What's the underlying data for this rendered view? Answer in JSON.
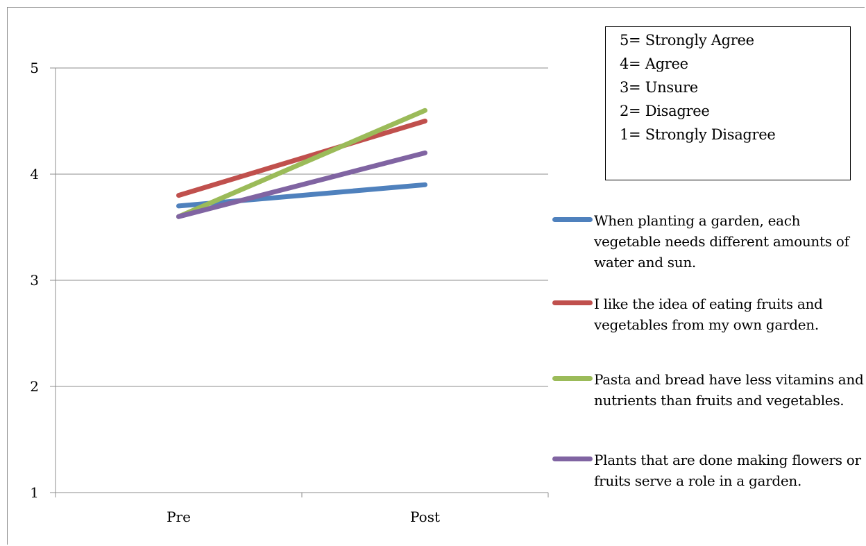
{
  "chart_data": {
    "type": "line",
    "categories": [
      "Pre",
      "Post"
    ],
    "ylim": [
      1,
      5
    ],
    "yticks": [
      1,
      2,
      3,
      4,
      5
    ],
    "grid": true,
    "legend_position": "right",
    "series": [
      {
        "name": "When planting a garden, each vegetable needs different amounts of water and sun.",
        "values": [
          3.7,
          3.9
        ],
        "color": "#4F81BD"
      },
      {
        "name": "I like the idea of eating fruits and vegetables from my own garden.",
        "values": [
          3.8,
          4.5
        ],
        "color": "#C0504D"
      },
      {
        "name": "Pasta and bread have less vitamins and nutrients than fruits and vegetables.",
        "values": [
          3.6,
          4.6
        ],
        "color": "#9BBB59"
      },
      {
        "name": "Plants that are done making flowers or fruits serve a role in a garden.",
        "values": [
          3.6,
          4.2
        ],
        "color": "#8064A2"
      }
    ],
    "scale_key": [
      "5= Strongly Agree",
      "4= Agree",
      "3= Unsure",
      "2= Disagree",
      "1= Strongly Disagree"
    ]
  }
}
